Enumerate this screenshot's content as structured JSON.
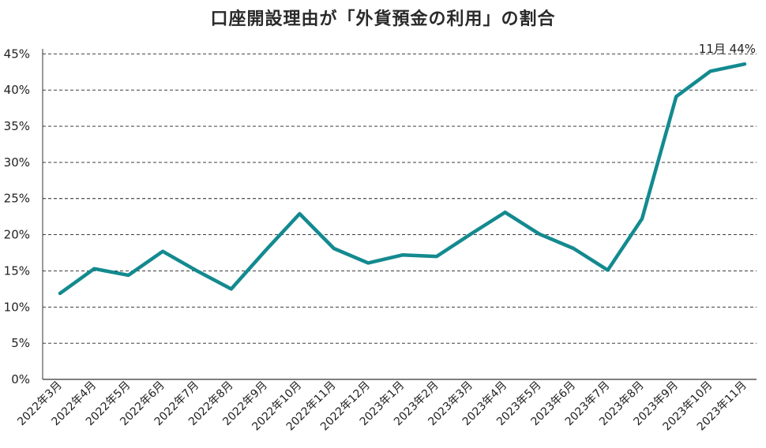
{
  "title": "口座開設理由が「外貨預金の利用」の割合",
  "chart_data": {
    "type": "line",
    "title": "口座開設理由が「外貨預金の利用」の割合",
    "xlabel": "",
    "ylabel": "",
    "ylim": [
      0,
      47
    ],
    "y_ticks": [
      0,
      5,
      10,
      15,
      20,
      25,
      30,
      35,
      40,
      45
    ],
    "y_tick_labels": [
      "0%",
      "5%",
      "10%",
      "15%",
      "20%",
      "25%",
      "30%",
      "35%",
      "40%",
      "45%"
    ],
    "grid": "horizontal dashed",
    "categories": [
      "2022年3月",
      "2022年4月",
      "2022年5月",
      "2022年6月",
      "2022年7月",
      "2022年8月",
      "2022年9月",
      "2022年10月",
      "2022年11月",
      "2022年12月",
      "2023年1月",
      "2023年2月",
      "2023年3月",
      "2023年4月",
      "2023年5月",
      "2023年6月",
      "2023年7月",
      "2023年8月",
      "2023年9月",
      "2023年10月",
      "2023年11月"
    ],
    "series": [
      {
        "color": "#138a8f",
        "values": [
          11.9,
          15.3,
          14.4,
          17.7,
          15.0,
          12.5,
          17.8,
          22.9,
          18.1,
          16.1,
          17.2,
          17.0,
          20.1,
          23.1,
          20.1,
          18.1,
          15.1,
          22.2,
          39.1,
          42.6,
          43.6
        ]
      }
    ],
    "annotation": {
      "text": "11月 44%",
      "category_index": 20
    }
  }
}
